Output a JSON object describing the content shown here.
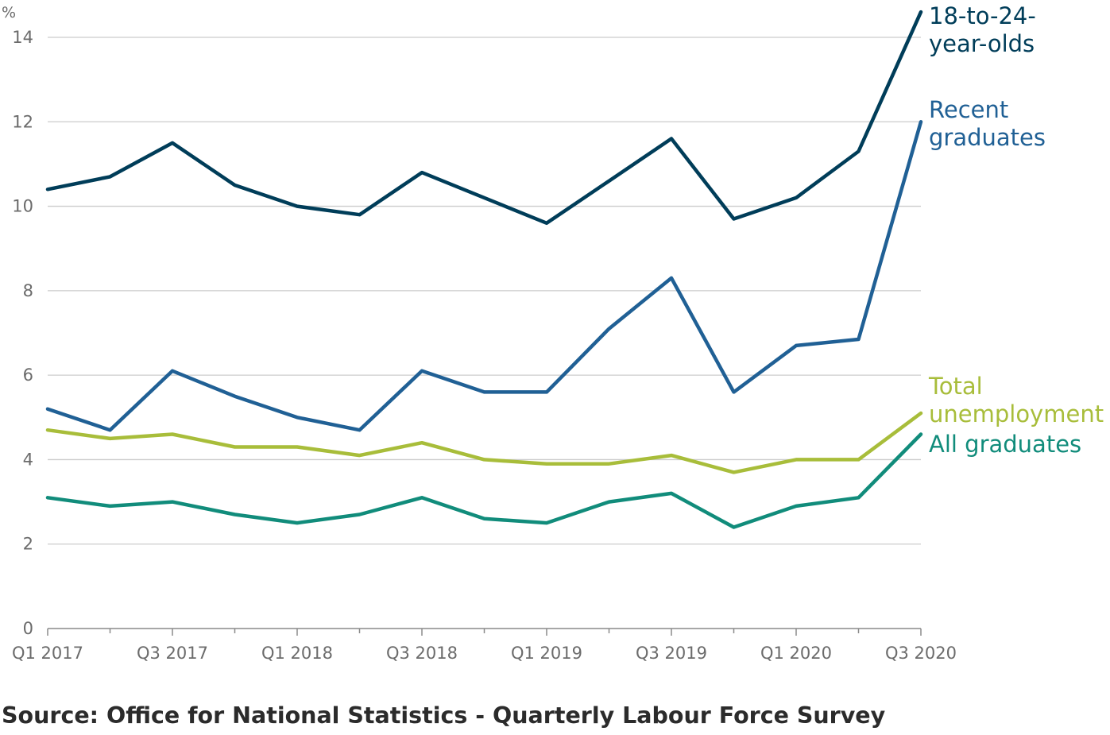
{
  "chart_data": {
    "type": "line",
    "title": "",
    "xlabel": "",
    "ylabel": "%",
    "ylim": [
      0,
      14
    ],
    "yticks": [
      0,
      2,
      4,
      6,
      8,
      10,
      12,
      14
    ],
    "grid": true,
    "legend": "direct labels at line ends (right)",
    "categories": [
      "Q1 2017",
      "Q2 2017",
      "Q3 2017",
      "Q4 2017",
      "Q1 2018",
      "Q2 2018",
      "Q3 2018",
      "Q4 2018",
      "Q1 2019",
      "Q2 2019",
      "Q3 2019",
      "Q4 2019",
      "Q1 2020",
      "Q2 2020",
      "Q3 2020"
    ],
    "tick_labels": [
      "Q1 2017",
      "",
      "Q3 2017",
      "",
      "Q1 2018",
      "",
      "Q3 2018",
      "",
      "Q1 2019",
      "",
      "Q3 2019",
      "",
      "Q1 2020",
      "",
      "Q3 2020"
    ],
    "series": [
      {
        "name": "18-to-24-year-olds",
        "label_lines": [
          "18-to-24-",
          "year-olds"
        ],
        "color": "#003d59",
        "values": [
          10.4,
          10.7,
          11.5,
          10.5,
          10.0,
          9.8,
          10.8,
          10.2,
          9.6,
          10.6,
          11.6,
          9.7,
          10.2,
          11.3,
          14.6
        ]
      },
      {
        "name": "Recent graduates",
        "label_lines": [
          "Recent",
          "graduates"
        ],
        "color": "#206095",
        "values": [
          5.2,
          4.7,
          6.1,
          5.5,
          5.0,
          4.7,
          6.1,
          5.6,
          5.6,
          7.1,
          8.3,
          5.6,
          6.7,
          6.85,
          12.0
        ]
      },
      {
        "name": "Total unemployment",
        "label_lines": [
          "Total",
          "unemployment"
        ],
        "color": "#a8bd3a",
        "values": [
          4.7,
          4.5,
          4.6,
          4.3,
          4.3,
          4.1,
          4.4,
          4.0,
          3.9,
          3.9,
          4.1,
          3.7,
          4.0,
          4.0,
          5.1
        ]
      },
      {
        "name": "All graduates",
        "label_lines": [
          "All graduates"
        ],
        "color": "#118c7b",
        "values": [
          3.1,
          2.9,
          3.0,
          2.7,
          2.5,
          2.7,
          3.1,
          2.6,
          2.5,
          3.0,
          3.2,
          2.4,
          2.9,
          3.1,
          4.6
        ]
      }
    ]
  },
  "source": "Source: Office for National Statistics - Quarterly Labour Force Survey"
}
